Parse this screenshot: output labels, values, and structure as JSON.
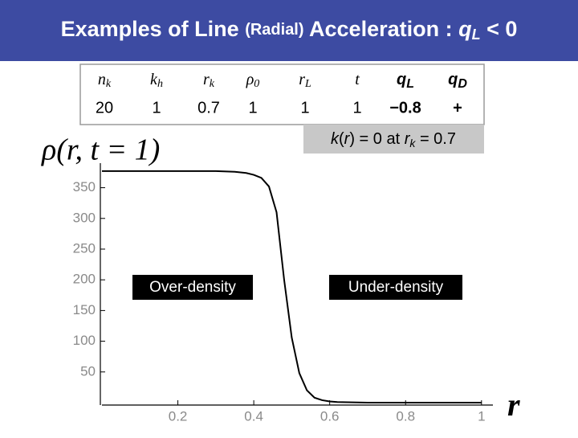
{
  "header": {
    "title": [
      "Examples of Line ",
      "(Radial)",
      " Acceleration :  ",
      "q",
      "L",
      " < 0"
    ]
  },
  "table": {
    "header": [
      {
        "base": "n",
        "sub": "k"
      },
      {
        "base": "k",
        "sub": "h"
      },
      {
        "base": "r",
        "sub": "k"
      },
      {
        "base": "ρ",
        "sub": "0"
      },
      {
        "base": "r",
        "sub": "L"
      },
      {
        "base": "t",
        "sub": null
      },
      {
        "base": "q",
        "sub": "L"
      },
      {
        "base": "q",
        "sub": "D"
      }
    ],
    "rows": [
      [
        "20",
        "1",
        "0.7",
        "1",
        "1",
        "1",
        "−0.8",
        "+"
      ]
    ]
  },
  "note": [
    "k",
    "(",
    "r",
    ") = 0  at  ",
    "r",
    "k",
    " = 0.7"
  ],
  "annotations": [
    "Over-density",
    "Under-density"
  ],
  "chart_data": {
    "type": "line",
    "y_label": "ρ(r, t = 1)",
    "x_label": "r",
    "x": [
      0,
      0.1,
      0.2,
      0.3,
      0.35,
      0.38,
      0.4,
      0.42,
      0.44,
      0.46,
      0.48,
      0.5,
      0.52,
      0.54,
      0.56,
      0.58,
      0.6,
      0.62,
      0.7,
      0.8,
      0.9,
      1.0
    ],
    "values": [
      377,
      377,
      377,
      377,
      376,
      374,
      371,
      366,
      352,
      310,
      200,
      106,
      48,
      20,
      8,
      4,
      2,
      1,
      0,
      0,
      0,
      0
    ],
    "color": "#000000",
    "xlim": [
      0,
      1.03
    ],
    "ylim": [
      0,
      390
    ],
    "xticks": [
      0.2,
      0.4,
      0.6,
      0.8,
      1
    ],
    "yticks": [
      50,
      100,
      150,
      200,
      250,
      300,
      350
    ]
  }
}
